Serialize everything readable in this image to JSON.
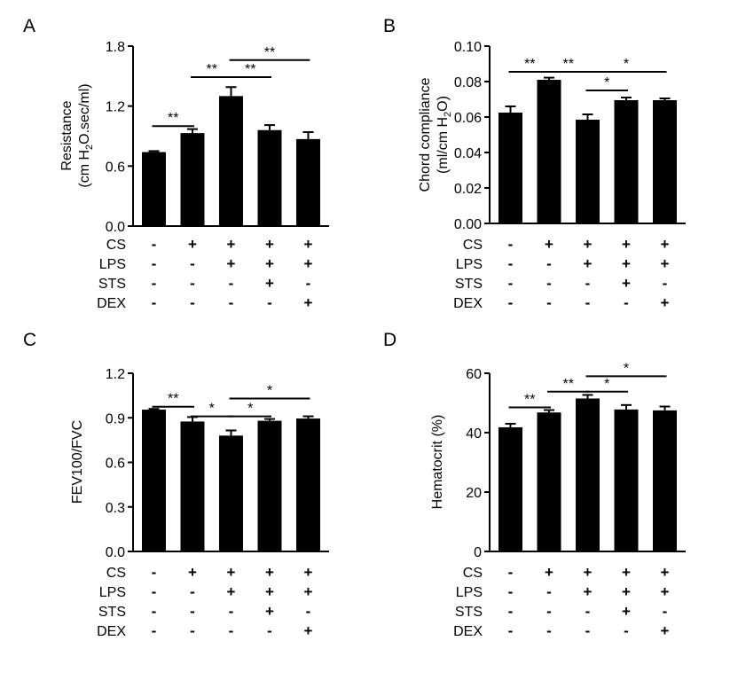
{
  "colors": {
    "bar": "#000000",
    "axis": "#000000",
    "background": "#ffffff"
  },
  "condition_labels": [
    "CS",
    "LPS",
    "STS",
    "DEX"
  ],
  "chart_data": [
    {
      "panel": "A",
      "type": "bar",
      "ylabel_line1": "Resistance",
      "ylabel_line2": "(cm H",
      "ylabel_sub": "2",
      "ylabel_line2_end": "O.sec/ml)",
      "ylim": [
        0,
        1.8
      ],
      "yticks": [
        0.0,
        0.6,
        1.2,
        1.8
      ],
      "ytick_labels": [
        "0.0",
        "0.6",
        "1.2",
        "1.8"
      ],
      "values": [
        0.74,
        0.93,
        1.3,
        0.96,
        0.87
      ],
      "errors": [
        0.01,
        0.04,
        0.09,
        0.05,
        0.07
      ],
      "conditions": [
        [
          "-",
          "+",
          "+",
          "+",
          "+"
        ],
        [
          "-",
          "-",
          "+",
          "+",
          "+"
        ],
        [
          "-",
          "-",
          "-",
          "+",
          "-"
        ],
        [
          "-",
          "-",
          "-",
          "-",
          "+"
        ]
      ],
      "significance": [
        {
          "from": 0,
          "to": 1,
          "label": "**",
          "level": 1.0
        },
        {
          "from": 1,
          "to": 2,
          "label": "**",
          "level": 1.49
        },
        {
          "from": 2,
          "to": 3,
          "label": "**",
          "level": 1.49
        },
        {
          "from": 2,
          "to": 4,
          "label": "**",
          "level": 1.66
        }
      ]
    },
    {
      "panel": "B",
      "type": "bar",
      "ylabel_line1": "Chord compliance",
      "ylabel_line2": "(ml/cm H",
      "ylabel_sub": "2",
      "ylabel_line2_end": "O)",
      "ylim": [
        0,
        0.1
      ],
      "yticks": [
        0.0,
        0.02,
        0.04,
        0.06,
        0.08,
        0.1
      ],
      "ytick_labels": [
        "0.00",
        "0.02",
        "0.04",
        "0.06",
        "0.08",
        "0.10"
      ],
      "values": [
        0.0625,
        0.081,
        0.0585,
        0.0695,
        0.0695
      ],
      "errors": [
        0.0035,
        0.0012,
        0.003,
        0.0015,
        0.001
      ],
      "conditions": [
        [
          "-",
          "+",
          "+",
          "+",
          "+"
        ],
        [
          "-",
          "-",
          "+",
          "+",
          "+"
        ],
        [
          "-",
          "-",
          "-",
          "+",
          "-"
        ],
        [
          "-",
          "-",
          "-",
          "-",
          "+"
        ]
      ],
      "significance": [
        {
          "from": 0,
          "to": 1,
          "label": "**",
          "level": 0.0855
        },
        {
          "from": 1,
          "to": 2,
          "label": "**",
          "level": 0.0855
        },
        {
          "from": 2,
          "to": 3,
          "label": "*",
          "level": 0.075
        },
        {
          "from": 2,
          "to": 4,
          "label": "*",
          "level": 0.0855
        }
      ]
    },
    {
      "panel": "C",
      "type": "bar",
      "ylabel_line1": "FEV100/FVC",
      "ylim": [
        0,
        1.2
      ],
      "yticks": [
        0.0,
        0.3,
        0.6,
        0.9,
        1.2
      ],
      "ytick_labels": [
        "0.0",
        "0.3",
        "0.6",
        "0.9",
        "1.2"
      ],
      "values": [
        0.955,
        0.875,
        0.78,
        0.88,
        0.895
      ],
      "errors": [
        0.005,
        0.03,
        0.035,
        0.012,
        0.015
      ],
      "conditions": [
        [
          "-",
          "+",
          "+",
          "+",
          "+"
        ],
        [
          "-",
          "-",
          "+",
          "+",
          "+"
        ],
        [
          "-",
          "-",
          "-",
          "+",
          "-"
        ],
        [
          "-",
          "-",
          "-",
          "-",
          "+"
        ]
      ],
      "significance": [
        {
          "from": 0,
          "to": 1,
          "label": "**",
          "level": 0.975
        },
        {
          "from": 1,
          "to": 2,
          "label": "*",
          "level": 0.91
        },
        {
          "from": 2,
          "to": 3,
          "label": "*",
          "level": 0.91
        },
        {
          "from": 2,
          "to": 4,
          "label": "*",
          "level": 1.03
        }
      ]
    },
    {
      "panel": "D",
      "type": "bar",
      "ylabel_line1": "Hematocrit (%)",
      "ylim": [
        0,
        60
      ],
      "yticks": [
        0,
        20,
        40,
        60
      ],
      "ytick_labels": [
        "0",
        "20",
        "40",
        "60"
      ],
      "values": [
        41.8,
        46.8,
        51.5,
        47.8,
        47.5
      ],
      "errors": [
        1.2,
        0.8,
        1.2,
        1.5,
        1.3
      ],
      "conditions": [
        [
          "-",
          "+",
          "+",
          "+",
          "+"
        ],
        [
          "-",
          "-",
          "+",
          "+",
          "+"
        ],
        [
          "-",
          "-",
          "-",
          "+",
          "-"
        ],
        [
          "-",
          "-",
          "-",
          "-",
          "+"
        ]
      ],
      "significance": [
        {
          "from": 0,
          "to": 1,
          "label": "**",
          "level": 48.5
        },
        {
          "from": 1,
          "to": 2,
          "label": "**",
          "level": 53.8
        },
        {
          "from": 2,
          "to": 3,
          "label": "*",
          "level": 53.8
        },
        {
          "from": 2,
          "to": 4,
          "label": "*",
          "level": 59.0
        }
      ]
    }
  ]
}
